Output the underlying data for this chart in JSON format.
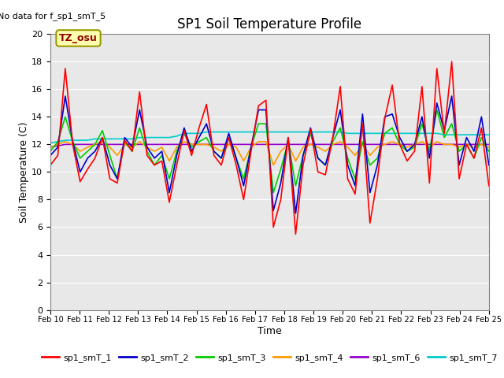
{
  "title": "SP1 Soil Temperature Profile",
  "xlabel": "Time",
  "ylabel": "Soil Temperature (C)",
  "no_data_text": "No data for f_sp1_smT_5",
  "tz_label": "TZ_osu",
  "ylim": [
    0,
    20
  ],
  "yticks": [
    0,
    2,
    4,
    6,
    8,
    10,
    12,
    14,
    16,
    18,
    20
  ],
  "bg_color": "#e8e8e8",
  "fig_bg": "#ffffff",
  "series": {
    "sp1_smT_1": {
      "color": "#ff0000",
      "label": "sp1_smT_1",
      "data": [
        10.5,
        11.2,
        17.5,
        12.0,
        9.3,
        10.2,
        11.0,
        12.5,
        9.5,
        9.2,
        12.3,
        11.5,
        15.8,
        11.2,
        10.5,
        10.8,
        7.8,
        10.5,
        13.0,
        11.2,
        13.2,
        14.9,
        11.2,
        10.5,
        12.5,
        10.5,
        8.0,
        11.5,
        14.8,
        15.2,
        6.0,
        8.0,
        12.5,
        5.5,
        10.5,
        13.1,
        10.0,
        9.8,
        12.5,
        16.2,
        9.5,
        8.4,
        13.5,
        6.3,
        9.5,
        13.9,
        16.3,
        12.0,
        10.8,
        11.5,
        16.2,
        9.2,
        17.5,
        12.8,
        18.0,
        9.5,
        12.0,
        11.0,
        13.2,
        9.0
      ]
    },
    "sp1_smT_2": {
      "color": "#0000cc",
      "label": "sp1_smT_2",
      "data": [
        11.2,
        11.8,
        15.5,
        12.2,
        10.0,
        11.0,
        11.5,
        12.5,
        10.5,
        9.5,
        12.5,
        11.8,
        14.5,
        11.8,
        11.0,
        11.5,
        8.5,
        11.2,
        13.2,
        11.5,
        12.5,
        13.5,
        11.5,
        11.0,
        12.8,
        11.0,
        9.0,
        11.8,
        14.5,
        14.5,
        7.2,
        9.2,
        12.5,
        7.0,
        11.2,
        13.2,
        11.0,
        10.5,
        12.5,
        14.5,
        10.5,
        9.0,
        14.2,
        8.5,
        10.5,
        14.0,
        14.2,
        12.5,
        11.5,
        12.0,
        14.0,
        11.0,
        15.0,
        13.0,
        15.5,
        10.5,
        12.5,
        11.5,
        14.0,
        10.5
      ]
    },
    "sp1_smT_3": {
      "color": "#00cc00",
      "label": "sp1_smT_3",
      "data": [
        11.5,
        12.2,
        14.0,
        12.2,
        11.0,
        11.5,
        12.0,
        13.0,
        11.2,
        9.5,
        12.2,
        11.5,
        13.2,
        11.5,
        10.5,
        11.2,
        9.5,
        11.5,
        12.8,
        11.8,
        12.2,
        12.5,
        11.5,
        11.0,
        12.5,
        11.0,
        9.5,
        11.8,
        13.5,
        13.5,
        8.5,
        10.2,
        12.2,
        9.0,
        11.2,
        12.8,
        11.0,
        10.5,
        12.2,
        13.2,
        11.0,
        9.5,
        12.2,
        10.5,
        11.0,
        12.8,
        13.2,
        12.0,
        11.5,
        11.8,
        13.5,
        11.5,
        14.5,
        12.5,
        13.5,
        11.5,
        12.0,
        11.0,
        12.5,
        11.5
      ]
    },
    "sp1_smT_4": {
      "color": "#ff9900",
      "label": "sp1_smT_4",
      "data": [
        11.8,
        12.0,
        12.2,
        12.0,
        11.5,
        11.8,
        12.0,
        12.2,
        11.8,
        11.2,
        12.0,
        11.8,
        12.2,
        11.8,
        11.5,
        11.8,
        10.8,
        11.8,
        12.2,
        12.0,
        12.0,
        12.0,
        11.8,
        11.5,
        12.0,
        11.8,
        10.8,
        11.8,
        12.2,
        12.2,
        10.5,
        11.5,
        12.0,
        10.8,
        11.8,
        12.0,
        11.8,
        11.5,
        12.0,
        12.2,
        11.8,
        11.2,
        12.0,
        11.2,
        11.8,
        12.0,
        12.2,
        12.0,
        11.8,
        12.0,
        12.2,
        11.8,
        12.2,
        12.0,
        12.0,
        11.8,
        12.0,
        11.8,
        12.0,
        11.8
      ]
    },
    "sp1_smT_6": {
      "color": "#9900cc",
      "label": "sp1_smT_6",
      "data": [
        11.8,
        11.9,
        12.0,
        12.0,
        12.0,
        12.0,
        12.0,
        12.0,
        12.0,
        12.0,
        12.0,
        12.0,
        12.0,
        12.0,
        12.0,
        12.0,
        12.0,
        12.0,
        12.0,
        12.0,
        12.0,
        12.0,
        12.0,
        12.0,
        12.0,
        12.0,
        12.0,
        12.0,
        12.0,
        12.0,
        12.0,
        12.0,
        12.0,
        12.0,
        12.0,
        12.0,
        12.0,
        12.0,
        12.0,
        12.0,
        12.0,
        12.0,
        12.0,
        12.0,
        12.0,
        12.0,
        12.0,
        12.0,
        12.0,
        12.0,
        12.0,
        12.0,
        12.0,
        12.0,
        12.0,
        12.0,
        12.0,
        12.0,
        12.0,
        12.0
      ]
    },
    "sp1_smT_7": {
      "color": "#00cccc",
      "label": "sp1_smT_7",
      "data": [
        12.1,
        12.2,
        12.3,
        12.3,
        12.3,
        12.3,
        12.4,
        12.4,
        12.4,
        12.4,
        12.4,
        12.4,
        12.5,
        12.5,
        12.5,
        12.5,
        12.5,
        12.6,
        12.8,
        12.8,
        12.8,
        12.9,
        12.9,
        12.9,
        12.9,
        12.9,
        12.9,
        12.9,
        12.9,
        12.9,
        12.9,
        12.9,
        12.9,
        12.9,
        12.9,
        12.9,
        12.9,
        12.9,
        12.9,
        12.9,
        12.8,
        12.8,
        12.8,
        12.8,
        12.8,
        12.8,
        12.8,
        12.8,
        12.8,
        12.8,
        12.8,
        12.8,
        12.8,
        12.7,
        12.7,
        12.7,
        12.7,
        12.7,
        12.7,
        12.7
      ]
    }
  },
  "x_tick_labels": [
    "Feb 10",
    "Feb 11",
    "Feb 12",
    "Feb 13",
    "Feb 14",
    "Feb 15",
    "Feb 16",
    "Feb 17",
    "Feb 18",
    "Feb 19",
    "Feb 20",
    "Feb 21",
    "Feb 22",
    "Feb 23",
    "Feb 24",
    "Feb 25"
  ],
  "n_points": 60,
  "legend_order": [
    "sp1_smT_1",
    "sp1_smT_2",
    "sp1_smT_3",
    "sp1_smT_4",
    "sp1_smT_6",
    "sp1_smT_7"
  ],
  "plot_order": [
    "sp1_smT_7",
    "sp1_smT_6",
    "sp1_smT_4",
    "sp1_smT_3",
    "sp1_smT_2",
    "sp1_smT_1"
  ]
}
